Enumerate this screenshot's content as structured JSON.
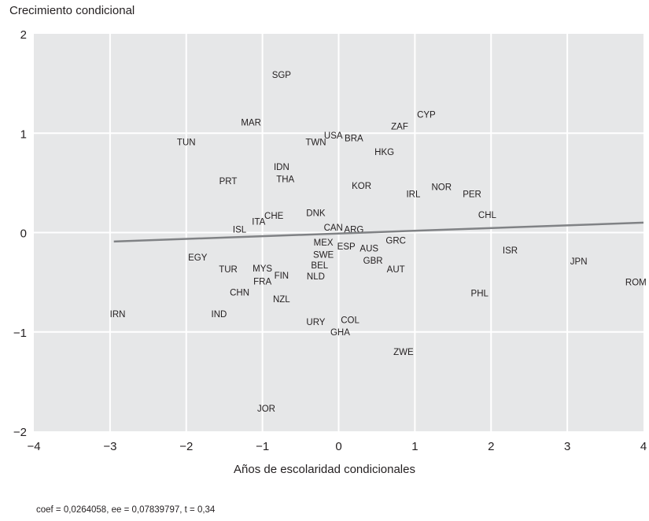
{
  "chart_data": {
    "type": "scatter",
    "ylabel": "Crecimiento condicional",
    "xlabel": "Años de escolaridad condicionales",
    "note": "coef = 0,0264058, ee = 0,07839797, t = 0,34",
    "xlim": [
      -4,
      4
    ],
    "ylim": [
      -2,
      2
    ],
    "xticks": [
      -4,
      -3,
      -2,
      -1,
      0,
      1,
      2,
      3,
      4
    ],
    "yticks": [
      -2,
      -1,
      0,
      1,
      2
    ],
    "grid": true,
    "background": "#e6e7e8",
    "gridColor": "#ffffff",
    "lineColor": "#808285",
    "fit_line": {
      "x": [
        -2.95,
        4.0
      ],
      "y": [
        -0.09,
        0.1
      ]
    },
    "points": [
      {
        "label": "SGP",
        "x": -0.75,
        "y": 1.59
      },
      {
        "label": "CYP",
        "x": 1.15,
        "y": 1.19
      },
      {
        "label": "MAR",
        "x": -1.15,
        "y": 1.11
      },
      {
        "label": "ZAF",
        "x": 0.8,
        "y": 1.07
      },
      {
        "label": "USA",
        "x": -0.07,
        "y": 0.98
      },
      {
        "label": "BRA",
        "x": 0.2,
        "y": 0.95
      },
      {
        "label": "TUN",
        "x": -2.0,
        "y": 0.91
      },
      {
        "label": "TWN",
        "x": -0.3,
        "y": 0.91
      },
      {
        "label": "HKG",
        "x": 0.6,
        "y": 0.81
      },
      {
        "label": "IDN",
        "x": -0.75,
        "y": 0.66
      },
      {
        "label": "THA",
        "x": -0.7,
        "y": 0.54
      },
      {
        "label": "PRT",
        "x": -1.45,
        "y": 0.52
      },
      {
        "label": "KOR",
        "x": 0.3,
        "y": 0.47
      },
      {
        "label": "NOR",
        "x": 1.35,
        "y": 0.46
      },
      {
        "label": "IRL",
        "x": 0.98,
        "y": 0.39
      },
      {
        "label": "PER",
        "x": 1.75,
        "y": 0.39
      },
      {
        "label": "DNK",
        "x": -0.3,
        "y": 0.2
      },
      {
        "label": "CHE",
        "x": -0.85,
        "y": 0.17
      },
      {
        "label": "CHL",
        "x": 1.95,
        "y": 0.18
      },
      {
        "label": "ITA",
        "x": -1.05,
        "y": 0.11
      },
      {
        "label": "CAN",
        "x": -0.07,
        "y": 0.05
      },
      {
        "label": "ARG",
        "x": 0.2,
        "y": 0.03
      },
      {
        "label": "ISL",
        "x": -1.3,
        "y": 0.03
      },
      {
        "label": "MEX",
        "x": -0.2,
        "y": -0.1
      },
      {
        "label": "GRC",
        "x": 0.75,
        "y": -0.08
      },
      {
        "label": "ESP",
        "x": 0.1,
        "y": -0.14
      },
      {
        "label": "AUS",
        "x": 0.4,
        "y": -0.16
      },
      {
        "label": "ISR",
        "x": 2.25,
        "y": -0.18
      },
      {
        "label": "SWE",
        "x": -0.2,
        "y": -0.22
      },
      {
        "label": "EGY",
        "x": -1.85,
        "y": -0.25
      },
      {
        "label": "GBR",
        "x": 0.45,
        "y": -0.28
      },
      {
        "label": "JPN",
        "x": 3.15,
        "y": -0.29
      },
      {
        "label": "BEL",
        "x": -0.25,
        "y": -0.33
      },
      {
        "label": "MYS",
        "x": -1.0,
        "y": -0.36
      },
      {
        "label": "AUT",
        "x": 0.75,
        "y": -0.37
      },
      {
        "label": "TUR",
        "x": -1.45,
        "y": -0.37
      },
      {
        "label": "FIN",
        "x": -0.75,
        "y": -0.43
      },
      {
        "label": "NLD",
        "x": -0.3,
        "y": -0.44
      },
      {
        "label": "FRA",
        "x": -1.0,
        "y": -0.49
      },
      {
        "label": "ROM",
        "x": 3.9,
        "y": -0.5
      },
      {
        "label": "CHN",
        "x": -1.3,
        "y": -0.6
      },
      {
        "label": "PHL",
        "x": 1.85,
        "y": -0.61
      },
      {
        "label": "NZL",
        "x": -0.75,
        "y": -0.67
      },
      {
        "label": "IRN",
        "x": -2.9,
        "y": -0.82
      },
      {
        "label": "IND",
        "x": -1.57,
        "y": -0.82
      },
      {
        "label": "URY",
        "x": -0.3,
        "y": -0.9
      },
      {
        "label": "COL",
        "x": 0.15,
        "y": -0.88
      },
      {
        "label": "GHA",
        "x": 0.02,
        "y": -1.0
      },
      {
        "label": "ZWE",
        "x": 0.85,
        "y": -1.2
      },
      {
        "label": "JOR",
        "x": -0.95,
        "y": -1.77
      }
    ]
  }
}
